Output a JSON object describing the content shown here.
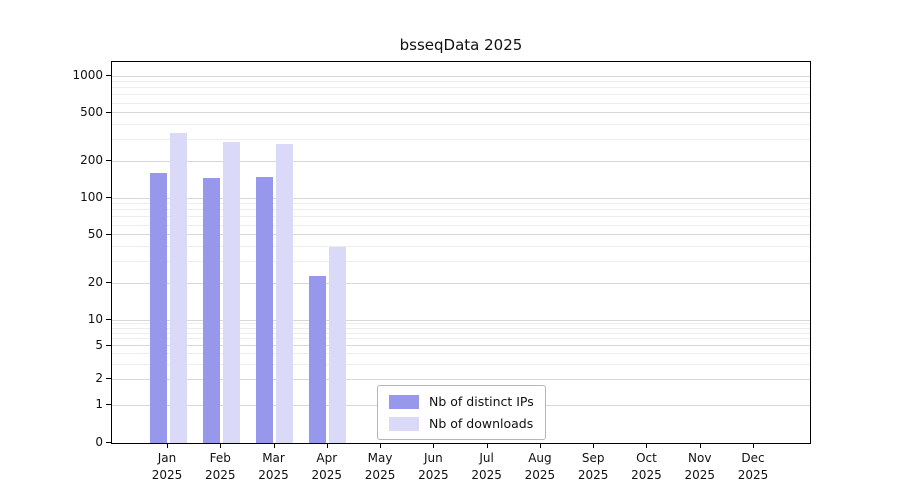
{
  "chart_data": {
    "type": "bar",
    "title": "bsseqData 2025",
    "categories": [
      "Jan",
      "Feb",
      "Mar",
      "Apr",
      "May",
      "Jun",
      "Jul",
      "Aug",
      "Sep",
      "Oct",
      "Nov",
      "Dec"
    ],
    "year": "2025",
    "series": [
      {
        "name": "Nb of distinct IPs",
        "color": "#9797ec",
        "values": [
          160,
          145,
          150,
          23,
          0,
          0,
          0,
          0,
          0,
          0,
          0,
          0
        ]
      },
      {
        "name": "Nb of downloads",
        "color": "#dadaf8",
        "values": [
          340,
          290,
          275,
          40,
          0,
          0,
          0,
          0,
          0,
          0,
          0,
          0
        ]
      }
    ],
    "yticks": [
      0,
      1,
      2,
      5,
      10,
      20,
      50,
      100,
      200,
      500,
      1000
    ],
    "scale": "log",
    "ylim": [
      0,
      1300
    ],
    "grid": "horizontal",
    "legend_position": "bottom-center"
  }
}
